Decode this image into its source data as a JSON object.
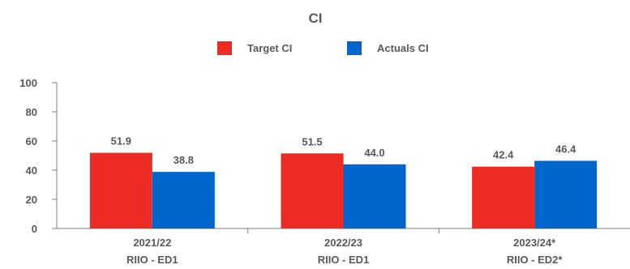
{
  "chart_data": {
    "type": "bar",
    "title": "CI",
    "categories": [
      {
        "line1": "2021/22",
        "line2": "RIIO - ED1"
      },
      {
        "line1": "2022/23",
        "line2": "RIIO - ED1"
      },
      {
        "line1": "2023/24*",
        "line2": "RIIO - ED2*"
      }
    ],
    "series": [
      {
        "name": "Target CI",
        "color": "#ee2a24",
        "values": [
          51.9,
          51.5,
          42.4
        ],
        "labels": [
          "51.9",
          "51.5",
          "42.4"
        ]
      },
      {
        "name": "Actuals CI",
        "color": "#0066cc",
        "values": [
          38.8,
          44.0,
          46.4
        ],
        "labels": [
          "38.8",
          "44.0",
          "46.4"
        ]
      }
    ],
    "yticks": [
      "0",
      "20",
      "40",
      "60",
      "80",
      "100"
    ],
    "ylim": [
      0,
      100
    ],
    "legend_position": "top-center",
    "grid": false
  }
}
